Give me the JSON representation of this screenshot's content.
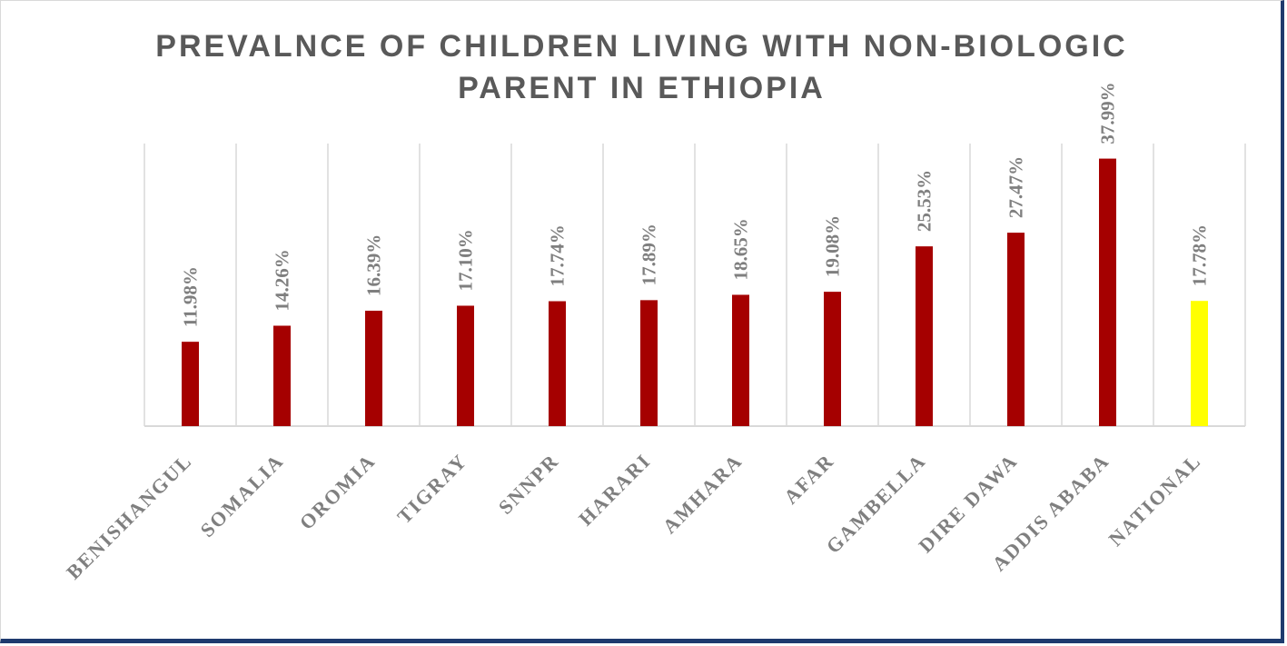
{
  "chart_data": {
    "type": "bar",
    "title_lines": [
      "PREVALNCE OF CHILDREN LIVING WITH NON-BIOLOGIC",
      "PARENT IN ETHIOPIA"
    ],
    "categories": [
      "BENISHANGUL",
      "SOMALIA",
      "OROMIA",
      "TIGRAY",
      "SNNPR",
      "HARARI",
      "AMHARA",
      "AFAR",
      "GAMBELLA",
      "DIRE DAWA",
      "ADDIS ABABA",
      "NATIONAL"
    ],
    "values": [
      11.98,
      14.26,
      16.39,
      17.1,
      17.74,
      17.89,
      18.65,
      19.08,
      25.53,
      27.47,
      37.99,
      17.78
    ],
    "data_labels": [
      "11.98%",
      "14.26%",
      "16.39%",
      "17.10%",
      "17.74%",
      "17.89%",
      "18.65%",
      "19.08%",
      "25.53%",
      "27.47%",
      "37.99%",
      "17.78%"
    ],
    "bar_colors": [
      "#a50000",
      "#a50000",
      "#a50000",
      "#a50000",
      "#a50000",
      "#a50000",
      "#a50000",
      "#a50000",
      "#a50000",
      "#a50000",
      "#a50000",
      "#ffff00"
    ],
    "xlabel": "",
    "ylabel": "",
    "ylim": [
      0,
      40
    ],
    "grid": "vertical",
    "legend": "none"
  }
}
